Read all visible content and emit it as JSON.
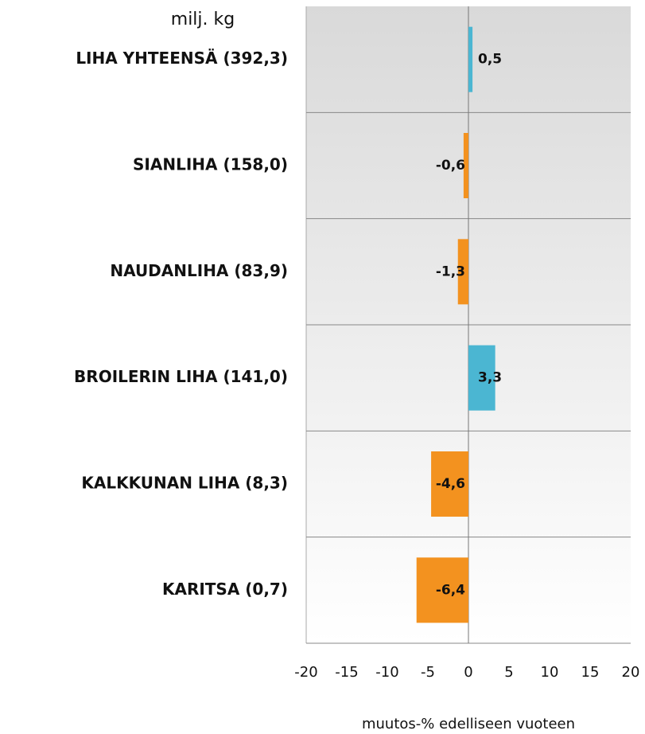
{
  "chart_data": {
    "type": "bar",
    "orientation": "horizontal",
    "unit_label": "milj. kg",
    "x_axis_title": "muutos-% edelliseen vuoteen",
    "categories": [
      "LIHA YHTEENSÄ (392,3)",
      "SIANLIHA (158,0)",
      "NAUDANLIHA (83,9)",
      "BROILERIN LIHA (141,0)",
      "KALKKUNAN LIHA (8,3)",
      "KARITSA (0,7)"
    ],
    "values": [
      0.5,
      -0.6,
      -1.3,
      3.3,
      -4.6,
      -6.4
    ],
    "value_labels": [
      "0,5",
      "-0,6",
      "-1,3",
      "3,3",
      "-4,6",
      "-6,4"
    ],
    "positive_color": "#4bb6d2",
    "negative_color": "#f3921f",
    "xlim": [
      -20,
      20
    ],
    "xticks": [
      -20,
      -15,
      -10,
      -5,
      0,
      5,
      10,
      15,
      20
    ]
  }
}
